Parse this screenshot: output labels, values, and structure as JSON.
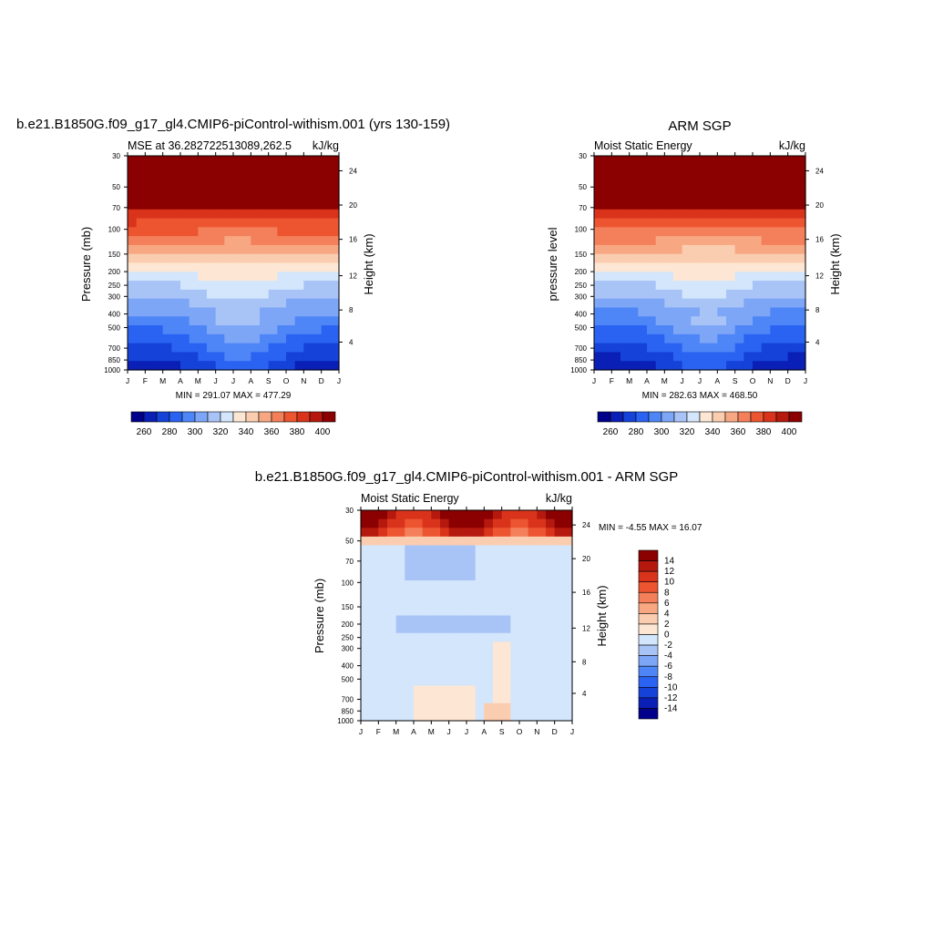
{
  "colors": {
    "levels_abs": [
      "#00008b",
      "#0a1fb5",
      "#1542d8",
      "#2a63f2",
      "#4f86f7",
      "#7ea6f7",
      "#a8c4f7",
      "#d3e6fb",
      "#fde7d4",
      "#fbcdb0",
      "#f7a883",
      "#f3805a",
      "#ec5530",
      "#d9341b",
      "#b5190e",
      "#8b0000"
    ],
    "levels_diff": [
      "#00008b",
      "#0a1fb5",
      "#1542d8",
      "#2a63f2",
      "#4f86f7",
      "#7ea6f7",
      "#a8c4f7",
      "#d3e6fb",
      "#fde7d4",
      "#fbcdb0",
      "#f7a883",
      "#f3805a",
      "#ec5530",
      "#d9341b",
      "#b5190e",
      "#8b0000"
    ]
  },
  "chart_data": [
    {
      "type": "heatmap",
      "title": "b.e21.B1850G.f09_g17_gl4.CMIP6-piControl-withism.001 (yrs 130-159)",
      "subtitle_left": "MSE at 36.282722513089,262.5",
      "subtitle_right": "kJ/kg",
      "ylabel": "Pressure (mb)",
      "ylabel_right": "Height (km)",
      "minmax": "MIN = 291.07 MAX = 477.29",
      "x_ticks": [
        "J",
        "F",
        "M",
        "A",
        "M",
        "J",
        "J",
        "A",
        "S",
        "O",
        "N",
        "D",
        "J"
      ],
      "y_ticks": [
        "30",
        "50",
        "70",
        "100",
        "150",
        "200",
        "250",
        "300",
        "400",
        "500",
        "700",
        "850",
        "1000"
      ],
      "y_ticks_right": [
        "24",
        "20",
        "16",
        "12",
        "8",
        "4"
      ],
      "colorbar_labels": [
        "260",
        "280",
        "300",
        "320",
        "340",
        "360",
        "380",
        "400"
      ]
    },
    {
      "type": "heatmap",
      "title": "ARM SGP",
      "subtitle_left": "Moist Static Energy",
      "subtitle_right": "kJ/kg",
      "ylabel": "pressure level",
      "ylabel_right": "Height (km)",
      "minmax": "MIN = 282.63 MAX = 468.50",
      "x_ticks": [
        "J",
        "F",
        "M",
        "A",
        "M",
        "J",
        "J",
        "A",
        "S",
        "O",
        "N",
        "D",
        "J"
      ],
      "y_ticks": [
        "30",
        "50",
        "70",
        "100",
        "150",
        "200",
        "250",
        "300",
        "400",
        "500",
        "700",
        "850",
        "1000"
      ],
      "y_ticks_right": [
        "24",
        "20",
        "16",
        "12",
        "8",
        "4"
      ],
      "colorbar_labels": [
        "260",
        "280",
        "300",
        "320",
        "340",
        "360",
        "380",
        "400"
      ]
    },
    {
      "type": "heatmap",
      "title": "b.e21.B1850G.f09_g17_gl4.CMIP6-piControl-withism.001 - ARM SGP",
      "subtitle_left": "Moist Static Energy",
      "subtitle_right": "kJ/kg",
      "ylabel": "Pressure (mb)",
      "ylabel_right": "Height (km)",
      "minmax": "MIN =  -4.55 MAX =  16.07",
      "x_ticks": [
        "J",
        "F",
        "M",
        "A",
        "M",
        "J",
        "J",
        "A",
        "S",
        "O",
        "N",
        "D",
        "J"
      ],
      "y_ticks": [
        "30",
        "50",
        "70",
        "100",
        "150",
        "200",
        "250",
        "300",
        "400",
        "500",
        "700",
        "850",
        "1000"
      ],
      "y_ticks_right": [
        "24",
        "20",
        "16",
        "12",
        "8",
        "4"
      ],
      "colorbar_labels": [
        "14",
        "12",
        "10",
        "8",
        "6",
        "4",
        "2",
        "0",
        "-2",
        "-4",
        "-6",
        "-8",
        "-10",
        "-12",
        "-14"
      ]
    }
  ]
}
